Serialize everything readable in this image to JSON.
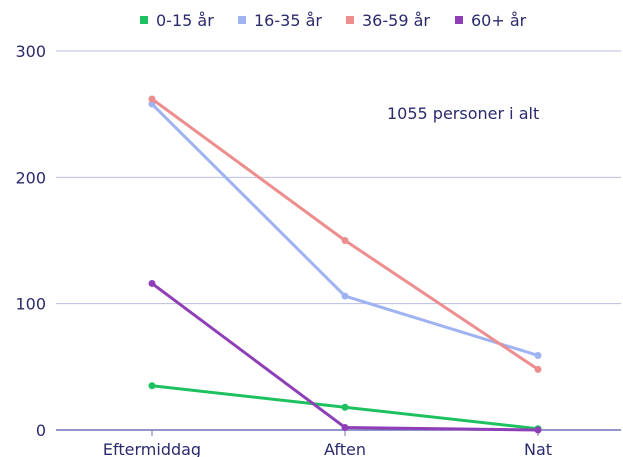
{
  "chart_data": {
    "type": "line",
    "categories": [
      "Eftermiddag",
      "Aften",
      "Nat"
    ],
    "series": [
      {
        "name": "0-15 år",
        "color": "#1ec15f",
        "values": [
          35,
          18,
          1
        ]
      },
      {
        "name": "16-35 år",
        "color": "#9fb2f2",
        "values": [
          258,
          106,
          59
        ]
      },
      {
        "name": "36-59 år",
        "color": "#ee8d8d",
        "values": [
          262,
          150,
          48
        ]
      },
      {
        "name": "60+ år",
        "color": "#8e3fb8",
        "values": [
          116,
          2,
          0
        ]
      }
    ],
    "ylim": [
      0,
      300
    ],
    "yticks": [
      0,
      100,
      200,
      300
    ],
    "annotation": "1055 personer i alt",
    "grid": "horizontal",
    "legend_position": "top"
  }
}
